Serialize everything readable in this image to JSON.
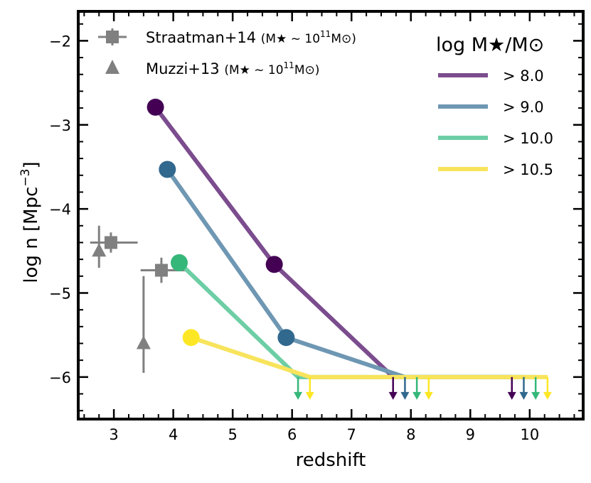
{
  "chart_data": {
    "type": "line",
    "xlabel": "redshift",
    "ylabel_main": "log  n  [Mpc",
    "ylabel_sup": "−3",
    "ylabel_end": "]",
    "xlim": [
      2.4,
      10.9
    ],
    "ylim": [
      -6.5,
      -1.65
    ],
    "xticks": [
      3,
      4,
      5,
      6,
      7,
      8,
      9,
      10
    ],
    "yticks": [
      -2,
      -3,
      -4,
      -5,
      -6
    ],
    "ytick_labels": [
      "−2",
      "−3",
      "−4",
      "−5",
      "−6"
    ],
    "upper_limit_value": -6.0,
    "legend_title": "log M★/M⊙",
    "series": [
      {
        "name": "> 8.0",
        "color": "#7b4c8e",
        "marker_color": "#440154",
        "x": [
          3.7,
          5.7
        ],
        "y": [
          -2.79,
          -4.66
        ],
        "limit_x_start": 5.7,
        "limit_line_x": [
          7.7,
          9.7
        ]
      },
      {
        "name": "> 9.0",
        "color": "#6e97b3",
        "marker_color": "#31688e",
        "x": [
          3.9,
          5.9
        ],
        "y": [
          -3.53,
          -5.53
        ],
        "limit_x_start": 5.9,
        "limit_line_x": [
          7.9,
          9.9
        ]
      },
      {
        "name": "> 10.0",
        "color": "#6dcea5",
        "marker_color": "#35b779",
        "x": [
          4.1
        ],
        "y": [
          -4.64
        ],
        "limit_x_start": 4.1,
        "limit_line_x": [
          6.1,
          8.1,
          10.1
        ]
      },
      {
        "name": "> 10.5",
        "color": "#f8e45c",
        "marker_color": "#fde725",
        "x": [
          4.3
        ],
        "y": [
          -5.53
        ],
        "limit_x_start": 4.3,
        "limit_line_x": [
          6.3,
          8.3,
          10.3
        ]
      }
    ],
    "observations": [
      {
        "name": "Straatman+14",
        "detail": "(M★ ~ 10",
        "detail_exp": "11",
        "detail_end": "M⊙)",
        "marker": "square",
        "color": "#808080",
        "points": [
          {
            "x": 2.95,
            "y": -4.4,
            "xerr": [
              0.35,
              0.45
            ],
            "yerr": [
              0.12,
              0.12
            ]
          },
          {
            "x": 3.8,
            "y": -4.73,
            "xerr": [
              0.35,
              0.4
            ],
            "yerr": [
              0.15,
              0.15
            ]
          }
        ]
      },
      {
        "name": "Muzzi+13",
        "detail": "(M★ ~ 10",
        "detail_exp": "11",
        "detail_end": "M⊙)",
        "marker": "triangle",
        "color": "#808080",
        "points": [
          {
            "x": 2.75,
            "y": -4.5,
            "xerr": [
              0,
              0
            ],
            "yerr": [
              0.2,
              0.3
            ]
          },
          {
            "x": 3.5,
            "y": -5.6,
            "xerr": [
              0,
              0
            ],
            "yerr": [
              0.35,
              0.8
            ]
          }
        ]
      }
    ]
  }
}
